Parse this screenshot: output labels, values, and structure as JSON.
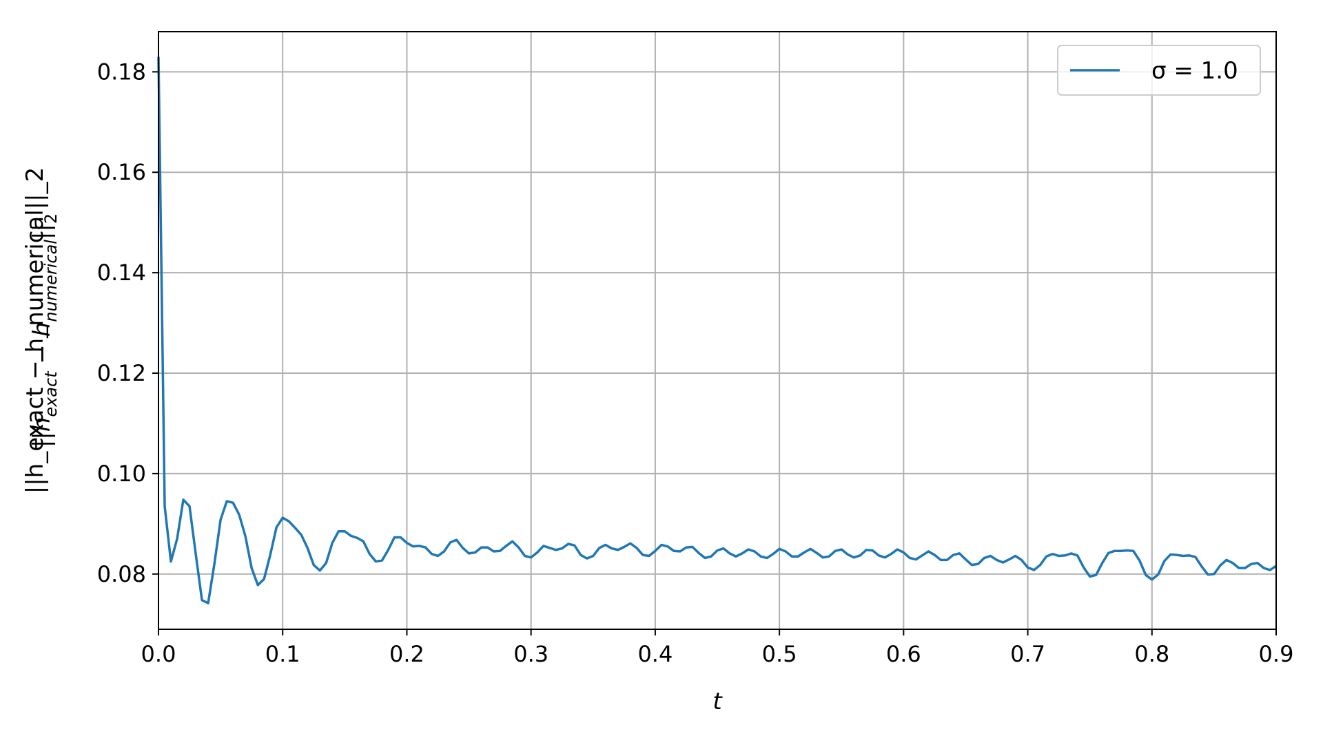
{
  "chart_data": {
    "type": "line",
    "title": "",
    "xlabel": "t",
    "ylabel": "||h_exact − h_numerical||_2",
    "xlim": [
      0.0,
      0.9
    ],
    "ylim": [
      0.069,
      0.188
    ],
    "x_ticks": [
      "0.0",
      "0.1",
      "0.2",
      "0.3",
      "0.4",
      "0.5",
      "0.6",
      "0.7",
      "0.8",
      "0.9"
    ],
    "y_ticks": [
      "0.08",
      "0.10",
      "0.12",
      "0.14",
      "0.16",
      "0.18"
    ],
    "grid": true,
    "legend_position": "top-right",
    "series": [
      {
        "name": "σ = 1.0",
        "color": "#1f77b4",
        "x": [
          0.0,
          0.005,
          0.01,
          0.015,
          0.02,
          0.025,
          0.03,
          0.035,
          0.04,
          0.045,
          0.05,
          0.055,
          0.06,
          0.065,
          0.07,
          0.075,
          0.08,
          0.085,
          0.09,
          0.095,
          0.1,
          0.105,
          0.11,
          0.115,
          0.12,
          0.125,
          0.13,
          0.135,
          0.14,
          0.145,
          0.15,
          0.155,
          0.16,
          0.165,
          0.17,
          0.175,
          0.18,
          0.185,
          0.19,
          0.195,
          0.2,
          0.205,
          0.21,
          0.215,
          0.22,
          0.225,
          0.23,
          0.235,
          0.24,
          0.245,
          0.25,
          0.255,
          0.26,
          0.265,
          0.27,
          0.275,
          0.28,
          0.285,
          0.29,
          0.295,
          0.3,
          0.305,
          0.31,
          0.315,
          0.32,
          0.325,
          0.33,
          0.335,
          0.34,
          0.345,
          0.35,
          0.355,
          0.36,
          0.365,
          0.37,
          0.375,
          0.38,
          0.385,
          0.39,
          0.395,
          0.4,
          0.405,
          0.41,
          0.415,
          0.42,
          0.425,
          0.43,
          0.435,
          0.44,
          0.445,
          0.45,
          0.455,
          0.46,
          0.465,
          0.47,
          0.475,
          0.48,
          0.485,
          0.49,
          0.495,
          0.5,
          0.505,
          0.51,
          0.515,
          0.52,
          0.525,
          0.53,
          0.535,
          0.54,
          0.545,
          0.55,
          0.555,
          0.56,
          0.565,
          0.57,
          0.575,
          0.58,
          0.585,
          0.59,
          0.595,
          0.6,
          0.605,
          0.61,
          0.615,
          0.62,
          0.625,
          0.63,
          0.635,
          0.64,
          0.645,
          0.65,
          0.655,
          0.66,
          0.665,
          0.67,
          0.675,
          0.68,
          0.685,
          0.69,
          0.695,
          0.7,
          0.705,
          0.71,
          0.715,
          0.72,
          0.725,
          0.73,
          0.735,
          0.74,
          0.745,
          0.75,
          0.755,
          0.76,
          0.765,
          0.77,
          0.775,
          0.78,
          0.785,
          0.79,
          0.795,
          0.8,
          0.805,
          0.81,
          0.815,
          0.82,
          0.825,
          0.83,
          0.835,
          0.84,
          0.845,
          0.85,
          0.855,
          0.86,
          0.865,
          0.87,
          0.875,
          0.88,
          0.885,
          0.89,
          0.895,
          0.9
        ],
        "y": [
          0.183,
          0.0935,
          0.0825,
          0.087,
          0.0948,
          0.0935,
          0.084,
          0.0748,
          0.0742,
          0.082,
          0.0908,
          0.0945,
          0.0942,
          0.0918,
          0.0875,
          0.0812,
          0.0778,
          0.079,
          0.0838,
          0.0893,
          0.0912,
          0.0905,
          0.0892,
          0.0878,
          0.0852,
          0.0818,
          0.0807,
          0.0822,
          0.0862,
          0.0885,
          0.0885,
          0.0876,
          0.0872,
          0.0865,
          0.084,
          0.0825,
          0.0827,
          0.0848,
          0.0873,
          0.0873,
          0.0862,
          0.0855,
          0.0856,
          0.0853,
          0.084,
          0.0836,
          0.0845,
          0.0863,
          0.0868,
          0.0852,
          0.0841,
          0.0843,
          0.0853,
          0.0853,
          0.0845,
          0.0846,
          0.0856,
          0.0865,
          0.0853,
          0.0836,
          0.0833,
          0.0843,
          0.0856,
          0.0852,
          0.0848,
          0.0851,
          0.086,
          0.0857,
          0.0838,
          0.0831,
          0.0836,
          0.0852,
          0.0858,
          0.0851,
          0.0848,
          0.0854,
          0.0861,
          0.0852,
          0.0838,
          0.0836,
          0.0846,
          0.0858,
          0.0855,
          0.0846,
          0.0845,
          0.0853,
          0.0854,
          0.0842,
          0.0832,
          0.0835,
          0.0847,
          0.0851,
          0.0841,
          0.0835,
          0.0841,
          0.0849,
          0.0845,
          0.0835,
          0.0832,
          0.084,
          0.085,
          0.0845,
          0.0835,
          0.0835,
          0.0843,
          0.085,
          0.0842,
          0.0833,
          0.0835,
          0.0846,
          0.0849,
          0.0839,
          0.0833,
          0.0837,
          0.0848,
          0.0847,
          0.0837,
          0.0833,
          0.084,
          0.0849,
          0.0843,
          0.0832,
          0.0829,
          0.0837,
          0.0845,
          0.0838,
          0.0828,
          0.0828,
          0.0838,
          0.0841,
          0.0829,
          0.0818,
          0.082,
          0.0832,
          0.0836,
          0.0828,
          0.0823,
          0.0829,
          0.0836,
          0.0828,
          0.0813,
          0.0808,
          0.0818,
          0.0835,
          0.084,
          0.0836,
          0.0837,
          0.0841,
          0.0837,
          0.0813,
          0.0795,
          0.0798,
          0.0822,
          0.0842,
          0.0846,
          0.0846,
          0.0847,
          0.0846,
          0.0827,
          0.0798,
          0.0789,
          0.0799,
          0.0826,
          0.0839,
          0.0838,
          0.0836,
          0.0837,
          0.0834,
          0.0815,
          0.0799,
          0.08,
          0.0817,
          0.0828,
          0.0822,
          0.0812,
          0.0812,
          0.082,
          0.0822,
          0.0812,
          0.0808,
          0.0816
        ]
      }
    ]
  }
}
